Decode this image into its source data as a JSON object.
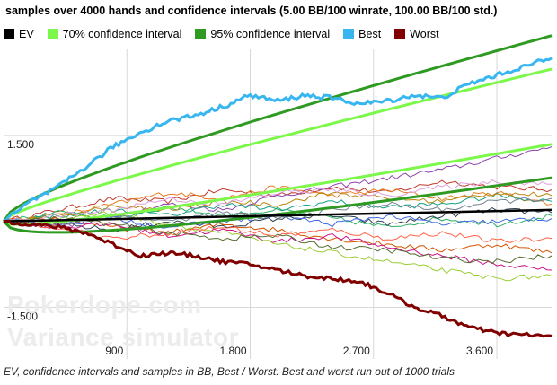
{
  "title": "samples over 4000 hands and confidence intervals (5.00 BB/100 winrate, 100.00 BB/100 std.)",
  "legend": [
    {
      "label": "EV",
      "color": "#000000"
    },
    {
      "label": "70% confidence interval",
      "color": "#7cf84a"
    },
    {
      "label": "95% confidence interval",
      "color": "#2e9a22"
    },
    {
      "label": "Best",
      "color": "#38b6f0"
    },
    {
      "label": "Worst",
      "color": "#800000"
    }
  ],
  "watermark": [
    "Pokerdope.com",
    "Variance simulator"
  ],
  "footer": "EV, confidence intervals and samples in BB, Best / Worst: Best and worst run out of 1000 trials",
  "colors": {
    "ev": "#000000",
    "ci70": "#7cf84a",
    "ci95": "#2e9a22",
    "best": "#38b6f0",
    "worst": "#800000",
    "grid": "#d8d8d8"
  },
  "chart_data": {
    "type": "line",
    "title": "samples over 4000 hands and confidence intervals (5.00 BB/100 winrate, 100.00 BB/100 std.)",
    "xlim": [
      0,
      4000
    ],
    "ylim": [
      -2.4,
      3.0
    ],
    "x_ticks": [
      900,
      1800,
      2700,
      3600
    ],
    "x_tick_labels": [
      "900",
      "1.800",
      "2.700",
      "3.600"
    ],
    "y_ticks": [
      -1.5,
      1.5
    ],
    "y_tick_labels": [
      "-1.500",
      "1.500"
    ],
    "grid": true,
    "ev": {
      "x": [
        0,
        4000
      ],
      "y": [
        0,
        0.2
      ]
    },
    "ci70": {
      "z": 1.036,
      "stddev_per_hand": 1.0,
      "winrate_per_hand": 0.05
    },
    "ci95": {
      "z": 1.96,
      "stddev_per_hand": 1.0,
      "winrate_per_hand": 0.05
    },
    "best": {
      "name": "Best",
      "x": [
        0,
        200,
        400,
        600,
        800,
        1000,
        1200,
        1400,
        1600,
        1800,
        2000,
        2200,
        2400,
        2600,
        2800,
        3000,
        3200,
        3400,
        3600,
        3800,
        4000
      ],
      "y": [
        0,
        0.35,
        0.6,
        0.95,
        1.3,
        1.55,
        1.75,
        1.85,
        2.0,
        2.2,
        2.1,
        2.2,
        2.15,
        2.05,
        2.1,
        2.2,
        2.15,
        2.4,
        2.55,
        2.7,
        2.85
      ]
    },
    "worst": {
      "name": "Worst",
      "x": [
        0,
        200,
        400,
        600,
        800,
        1000,
        1200,
        1400,
        1600,
        1800,
        2000,
        2200,
        2400,
        2600,
        2800,
        3000,
        3200,
        3400,
        3600,
        3800,
        4000
      ],
      "y": [
        0,
        -0.05,
        -0.1,
        -0.2,
        -0.4,
        -0.6,
        -0.55,
        -0.6,
        -0.7,
        -0.75,
        -0.85,
        -0.95,
        -1.0,
        -1.05,
        -1.25,
        -1.5,
        -1.65,
        -1.85,
        -1.95,
        -1.98,
        -2.0
      ]
    },
    "samples": [
      {
        "color": "#c0392b",
        "y": [
          0,
          0.2,
          0.4,
          0.35,
          0.55,
          0.45,
          0.6,
          0.5,
          0.7,
          0.6,
          0.55
        ]
      },
      {
        "color": "#e67e22",
        "y": [
          0,
          0.1,
          0.3,
          0.5,
          0.4,
          0.6,
          0.45,
          0.55,
          0.4,
          0.5,
          0.3
        ]
      },
      {
        "color": "#8e44ad",
        "y": [
          0,
          -0.1,
          0.1,
          0.3,
          0.2,
          0.45,
          0.6,
          0.75,
          0.9,
          1.1,
          1.3
        ]
      },
      {
        "color": "#27ae60",
        "y": [
          0,
          0.15,
          0.05,
          0.25,
          0.1,
          0.2,
          0.05,
          -0.1,
          0.05,
          -0.05,
          0.1
        ]
      },
      {
        "color": "#2c3e50",
        "y": [
          0,
          -0.05,
          -0.15,
          0.0,
          -0.1,
          0.05,
          0.1,
          -0.05,
          0.1,
          0.2,
          0.15
        ]
      },
      {
        "color": "#d35400",
        "y": [
          0,
          0.05,
          -0.1,
          -0.2,
          -0.05,
          -0.15,
          -0.3,
          -0.4,
          -0.5,
          -0.4,
          -0.55
        ]
      },
      {
        "color": "#16a085",
        "y": [
          0,
          0.1,
          0.2,
          0.1,
          0.3,
          0.2,
          0.35,
          0.25,
          0.3,
          0.45,
          0.35
        ]
      },
      {
        "color": "#c71585",
        "y": [
          0,
          -0.1,
          -0.05,
          -0.25,
          -0.15,
          -0.35,
          -0.25,
          -0.45,
          -0.6,
          -0.75,
          -0.85
        ]
      },
      {
        "color": "#9acd32",
        "y": [
          0,
          0.05,
          0.15,
          -0.05,
          -0.2,
          -0.4,
          -0.55,
          -0.7,
          -0.85,
          -1.0,
          -0.95
        ]
      },
      {
        "color": "#4169e1",
        "y": [
          0,
          -0.05,
          0.05,
          -0.1,
          0.0,
          0.1,
          -0.05,
          0.1,
          -0.05,
          0.0,
          0.05
        ]
      },
      {
        "color": "#b8860b",
        "y": [
          0,
          0.1,
          0.25,
          0.2,
          0.35,
          0.3,
          0.5,
          0.4,
          0.35,
          0.5,
          0.45
        ]
      },
      {
        "color": "#ff6347",
        "y": [
          0,
          -0.1,
          -0.3,
          -0.2,
          -0.1,
          -0.25,
          -0.15,
          -0.3,
          -0.2,
          -0.35,
          -0.3
        ]
      },
      {
        "color": "#556b2f",
        "y": [
          0,
          0.05,
          -0.05,
          -0.2,
          -0.3,
          -0.25,
          -0.45,
          -0.5,
          -0.65,
          -0.7,
          -0.6
        ]
      },
      {
        "color": "#dda0dd",
        "y": [
          0,
          0.1,
          0.2,
          0.4,
          0.3,
          0.5,
          0.55,
          0.45,
          0.6,
          0.7,
          0.65
        ]
      },
      {
        "color": "#708090",
        "y": [
          0,
          -0.05,
          0.1,
          0.0,
          0.15,
          0.05,
          0.2,
          0.3,
          0.2,
          0.35,
          0.4
        ]
      }
    ]
  }
}
